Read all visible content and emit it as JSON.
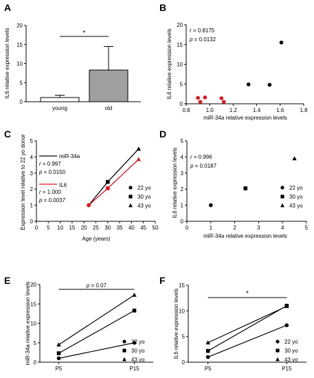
{
  "chart_data": [
    {
      "panel": "A",
      "type": "bar",
      "ylabel": "IL6 relative expression levels",
      "categories": [
        "young",
        "old"
      ],
      "values": [
        1.1,
        8.3
      ],
      "errors": [
        0.6,
        6.2
      ],
      "ylim": [
        0,
        20
      ],
      "yticks": [
        "0",
        "5",
        "10",
        "15",
        "20"
      ],
      "bar_colors": [
        "#ffffff",
        "#a0a0a0"
      ],
      "significance": "*"
    },
    {
      "panel": "B",
      "type": "scatter",
      "xlabel": "miR-34a  relative expression levels",
      "ylabel": "IL6 relative expression levels",
      "xlim": [
        0.8,
        1.8
      ],
      "ylim": [
        0,
        20
      ],
      "xticks": [
        "0.8",
        "1.0",
        "1.2",
        "1.4",
        "1.6",
        "1.8"
      ],
      "yticks": [
        "0",
        "5",
        "10",
        "15",
        "20"
      ],
      "annotation": [
        "r = 0.8175",
        "p = 0.0132"
      ],
      "series": [
        {
          "color": "#e0141e",
          "x": [
            0.9,
            0.92,
            0.96,
            1.1,
            1.12
          ],
          "y": [
            1.5,
            0.5,
            1.6,
            1.4,
            0.5
          ]
        },
        {
          "color": "#000000",
          "x": [
            1.33,
            1.51,
            1.61
          ],
          "y": [
            4.9,
            4.8,
            15.5
          ]
        }
      ]
    },
    {
      "panel": "C",
      "type": "line",
      "xlabel": "Age (years)",
      "ylabel": "Expression level relative to 22 yo donor",
      "xlim": [
        0,
        50
      ],
      "ylim": [
        0,
        5
      ],
      "xticks": [
        "0",
        "5",
        "10",
        "15",
        "20",
        "25",
        "30",
        "35",
        "40",
        "45",
        "50"
      ],
      "yticks": [
        "0",
        "1",
        "2",
        "3",
        "4",
        "5"
      ],
      "legend_markers": [
        "22 yo",
        "30 yo",
        "43 yo"
      ],
      "series": [
        {
          "name": "miR-34a",
          "color": "#000000",
          "x": [
            22,
            30,
            43
          ],
          "y": [
            1.0,
            2.45,
            4.5
          ],
          "stats": [
            "r = 0.997",
            "p = 0.0150"
          ]
        },
        {
          "name": "IL6",
          "color": "#e0141e",
          "x": [
            22,
            30,
            43
          ],
          "y": [
            1.0,
            2.05,
            3.85
          ],
          "stats": [
            "r = 1.000",
            "p = 0.0037"
          ]
        }
      ]
    },
    {
      "panel": "D",
      "type": "scatter",
      "xlabel": "miR-34a relative expression levels",
      "ylabel": "IL6 relative expression levels",
      "xlim": [
        0,
        5
      ],
      "ylim": [
        0,
        5
      ],
      "xticks": [
        "0",
        "1",
        "2",
        "3",
        "4",
        "5"
      ],
      "yticks": [
        "0",
        "1",
        "2",
        "3",
        "4",
        "5"
      ],
      "annotation": [
        "r = 0.996",
        "p = 0.0187"
      ],
      "legend_markers": [
        "22 yo",
        "30 yo",
        "43 yo"
      ],
      "points": [
        {
          "marker": "circle",
          "x": 1.0,
          "y": 1.0
        },
        {
          "marker": "square",
          "x": 2.45,
          "y": 2.05
        },
        {
          "marker": "triangle",
          "x": 4.5,
          "y": 3.9
        }
      ]
    },
    {
      "panel": "E",
      "type": "line",
      "ylabel": "miR-34a relative expression levels",
      "categories": [
        "P5",
        "P15"
      ],
      "ylim": [
        0,
        20
      ],
      "yticks": [
        "0",
        "5",
        "10",
        "15",
        "20"
      ],
      "annotation": "p = 0.07",
      "series": [
        {
          "name": "22 yo",
          "marker": "circle",
          "values": [
            1.0,
            5.0
          ]
        },
        {
          "name": "30 yo",
          "marker": "square",
          "values": [
            2.3,
            13.3
          ]
        },
        {
          "name": "43 yo",
          "marker": "triangle",
          "values": [
            4.5,
            17.3
          ]
        }
      ]
    },
    {
      "panel": "F",
      "type": "line",
      "ylabel": "IL6 relative expression levels",
      "categories": [
        "P5",
        "P15"
      ],
      "ylim": [
        0,
        15
      ],
      "yticks": [
        "0",
        "5",
        "10",
        "15"
      ],
      "annotation": "*",
      "series": [
        {
          "name": "22 yo",
          "marker": "circle",
          "values": [
            1.0,
            7.2
          ]
        },
        {
          "name": "30 yo",
          "marker": "square",
          "values": [
            2.2,
            11.0
          ]
        },
        {
          "name": "43 yo",
          "marker": "triangle",
          "values": [
            3.8,
            10.9
          ]
        }
      ]
    }
  ]
}
